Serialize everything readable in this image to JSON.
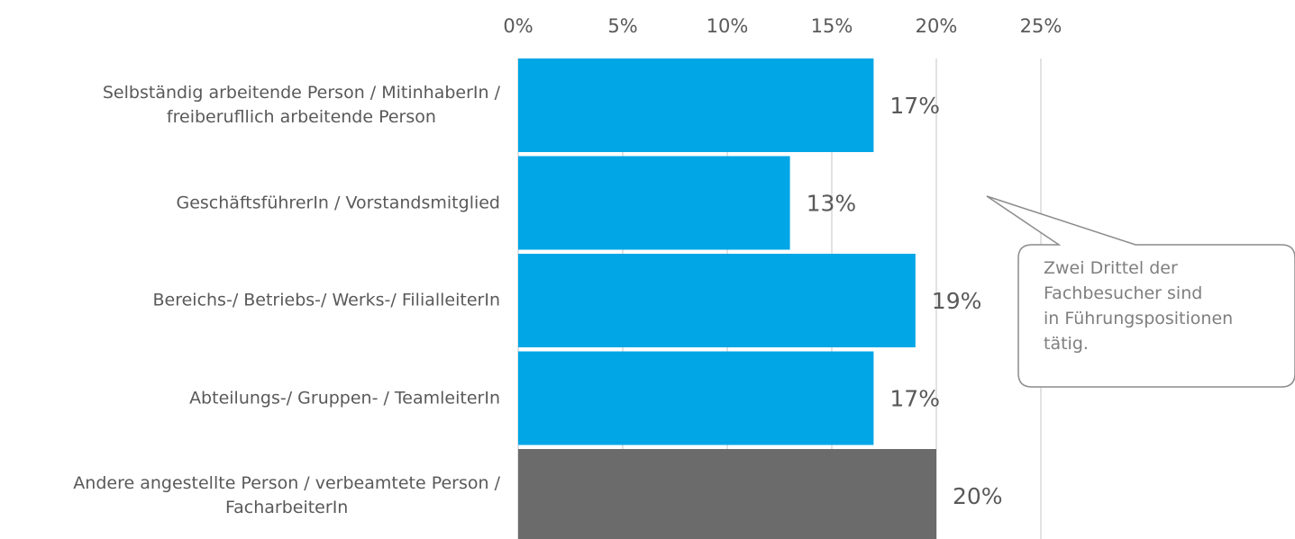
{
  "chart_data": {
    "type": "bar",
    "orientation": "horizontal",
    "categories": [
      "Selbständig arbeitende Person / MitinhaberIn /\nfreiberufllich arbeitende Person",
      "GeschäftsführerIn / Vorstandsmitglied",
      "Bereichs-/ Betriebs-/ Werks-/ FilialleiterIn",
      "Abteilungs-/ Gruppen- / TeamleiterIn",
      "Andere angestellte Person / verbeamtete Person /\nFacharbeiterIn"
    ],
    "values": [
      17,
      13,
      19,
      17,
      20
    ],
    "value_labels": [
      "17%",
      "13%",
      "19%",
      "17%",
      "20%"
    ],
    "colors": [
      "#00a6e6",
      "#00a6e6",
      "#00a6e6",
      "#00a6e6",
      "#6b6b6b"
    ],
    "xlim": [
      0,
      25
    ],
    "xticks": [
      {
        "value": 0,
        "label": "0%"
      },
      {
        "value": 5,
        "label": "5%"
      },
      {
        "value": 10,
        "label": "10%"
      },
      {
        "value": 15,
        "label": "15%"
      },
      {
        "value": 20,
        "label": "20%"
      },
      {
        "value": 25,
        "label": "25%"
      }
    ],
    "grid": true,
    "annotation": "Zwei Drittel der\nFachbesucher sind\nin Führungspositionen\ntätig."
  }
}
